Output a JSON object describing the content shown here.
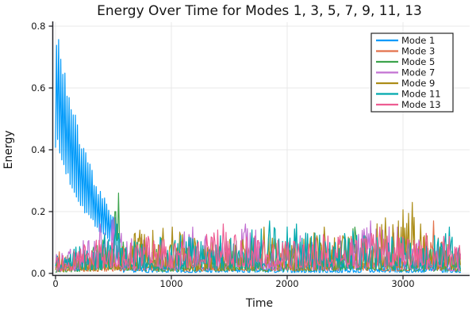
{
  "figure": {
    "background": "#ffffff",
    "text_color": "#151515",
    "grid_color": "#e8e8e8",
    "axis_color": "#24242a"
  },
  "chart_data": {
    "type": "line",
    "title": "Energy Over Time for Modes 1, 3, 5, 7, 9, 11, 13",
    "xlabel": "Time",
    "ylabel": "Energy",
    "xlim": [
      -55,
      3630
    ],
    "ylim": [
      -0.006,
      0.815
    ],
    "xticks": [
      0,
      1000,
      2000,
      3000
    ],
    "xtick_labels": [
      "0",
      "1000",
      "2000",
      "3000"
    ],
    "yticks": [
      0.0,
      0.2,
      0.4,
      0.6,
      0.8
    ],
    "ytick_labels": [
      "0.0",
      "0.2",
      "0.4",
      "0.6",
      "0.8"
    ],
    "grid": true,
    "legend": {
      "position": "top-right",
      "border_color": "#262626",
      "background": "#ffffff"
    },
    "series": [
      {
        "name": "Mode 1",
        "color": "#009AFA",
        "model": "decaying_oscillation",
        "params": {
          "initial_peak": 0.78,
          "amplitude": 0.8,
          "tau": 341,
          "period": 18,
          "trough_ratio": 0.54,
          "decay_end": 540,
          "residual_env": 0.035,
          "residual_floor": 0.1,
          "residual_power": 3
        },
        "seed": 7,
        "notable_peaks": []
      },
      {
        "name": "Mode 3",
        "color": "#E3724B",
        "model": "noise",
        "seed": 11,
        "floor": 0.1,
        "power": 2.4,
        "envelope": [
          [
            0,
            0.09
          ],
          [
            200,
            0.06
          ],
          [
            500,
            0.07
          ],
          [
            800,
            0.1
          ],
          [
            1100,
            0.07
          ],
          [
            1400,
            0.08
          ],
          [
            1700,
            0.09
          ],
          [
            2000,
            0.08
          ],
          [
            2300,
            0.09
          ],
          [
            2550,
            0.12
          ],
          [
            2600,
            0.1
          ],
          [
            2900,
            0.08
          ],
          [
            3100,
            0.09
          ],
          [
            3265,
            0.17
          ],
          [
            3400,
            0.1
          ],
          [
            3500,
            0.08
          ]
        ],
        "notable_peaks": [
          [
            30,
            0.07
          ],
          [
            2550,
            0.12
          ],
          [
            3265,
            0.17
          ]
        ]
      },
      {
        "name": "Mode 5",
        "color": "#3DA44D",
        "model": "noise",
        "seed": 23,
        "floor": 0.08,
        "power": 2.6,
        "envelope": [
          [
            0,
            0.05
          ],
          [
            300,
            0.08
          ],
          [
            480,
            0.18
          ],
          [
            540,
            0.26
          ],
          [
            600,
            0.12
          ],
          [
            900,
            0.08
          ],
          [
            1200,
            0.09
          ],
          [
            1500,
            0.1
          ],
          [
            1800,
            0.08
          ],
          [
            2100,
            0.09
          ],
          [
            2400,
            0.1
          ],
          [
            2580,
            0.15
          ],
          [
            2800,
            0.1
          ],
          [
            3100,
            0.08
          ],
          [
            3300,
            0.09
          ],
          [
            3500,
            0.07
          ]
        ],
        "notable_peaks": [
          [
            510,
            0.2
          ],
          [
            540,
            0.26
          ],
          [
            2580,
            0.15
          ]
        ]
      },
      {
        "name": "Mode 7",
        "color": "#C271D2",
        "model": "noise",
        "seed": 37,
        "floor": 0.09,
        "power": 2.4,
        "envelope": [
          [
            0,
            0.06
          ],
          [
            200,
            0.1
          ],
          [
            380,
            0.16
          ],
          [
            500,
            0.18
          ],
          [
            700,
            0.12
          ],
          [
            900,
            0.13
          ],
          [
            1180,
            0.15
          ],
          [
            1400,
            0.1
          ],
          [
            1640,
            0.16
          ],
          [
            1900,
            0.11
          ],
          [
            2100,
            0.14
          ],
          [
            2400,
            0.1
          ],
          [
            2720,
            0.17
          ],
          [
            2950,
            0.15
          ],
          [
            3100,
            0.12
          ],
          [
            3300,
            0.1
          ],
          [
            3500,
            0.09
          ]
        ],
        "notable_peaks": [
          [
            380,
            0.16
          ],
          [
            500,
            0.18
          ],
          [
            1180,
            0.15
          ],
          [
            1640,
            0.16
          ],
          [
            2720,
            0.17
          ],
          [
            2950,
            0.15
          ]
        ]
      },
      {
        "name": "Mode 9",
        "color": "#AC8D18",
        "model": "noise",
        "seed": 49,
        "floor": 0.09,
        "power": 2.4,
        "envelope": [
          [
            0,
            0.06
          ],
          [
            300,
            0.08
          ],
          [
            600,
            0.12
          ],
          [
            730,
            0.14
          ],
          [
            1000,
            0.15
          ],
          [
            1300,
            0.1
          ],
          [
            1550,
            0.12
          ],
          [
            1800,
            0.15
          ],
          [
            2050,
            0.1
          ],
          [
            2320,
            0.15
          ],
          [
            2600,
            0.12
          ],
          [
            2850,
            0.18
          ],
          [
            3080,
            0.23
          ],
          [
            3160,
            0.16
          ],
          [
            3350,
            0.1
          ],
          [
            3500,
            0.08
          ]
        ],
        "notable_peaks": [
          [
            730,
            0.14
          ],
          [
            1010,
            0.15
          ],
          [
            1800,
            0.15
          ],
          [
            2320,
            0.15
          ],
          [
            2850,
            0.18
          ],
          [
            3080,
            0.23
          ],
          [
            3150,
            0.16
          ]
        ]
      },
      {
        "name": "Mode 11",
        "color": "#00A9AD",
        "model": "noise",
        "seed": 61,
        "floor": 0.1,
        "power": 2.2,
        "envelope": [
          [
            0,
            0.07
          ],
          [
            250,
            0.1
          ],
          [
            500,
            0.14
          ],
          [
            750,
            0.13
          ],
          [
            1000,
            0.12
          ],
          [
            1250,
            0.13
          ],
          [
            1500,
            0.12
          ],
          [
            1850,
            0.17
          ],
          [
            2080,
            0.16
          ],
          [
            2350,
            0.13
          ],
          [
            2600,
            0.14
          ],
          [
            2900,
            0.13
          ],
          [
            3150,
            0.12
          ],
          [
            3400,
            0.15
          ],
          [
            3500,
            0.12
          ]
        ],
        "notable_peaks": [
          [
            520,
            0.14
          ],
          [
            1850,
            0.17
          ],
          [
            2080,
            0.16
          ],
          [
            3400,
            0.15
          ]
        ]
      },
      {
        "name": "Mode 13",
        "color": "#ED5D92",
        "model": "noise",
        "seed": 73,
        "floor": 0.15,
        "power": 1.9,
        "envelope": [
          [
            0,
            0.05
          ],
          [
            200,
            0.09
          ],
          [
            400,
            0.12
          ],
          [
            600,
            0.11
          ],
          [
            800,
            0.12
          ],
          [
            1000,
            0.11
          ],
          [
            1200,
            0.12
          ],
          [
            1450,
            0.16
          ],
          [
            1700,
            0.13
          ],
          [
            1900,
            0.12
          ],
          [
            2100,
            0.11
          ],
          [
            2350,
            0.13
          ],
          [
            2600,
            0.12
          ],
          [
            2800,
            0.15
          ],
          [
            3000,
            0.12
          ],
          [
            3200,
            0.13
          ],
          [
            3400,
            0.12
          ],
          [
            3500,
            0.1
          ]
        ],
        "notable_peaks": [
          [
            800,
            0.12
          ],
          [
            1450,
            0.16
          ],
          [
            2800,
            0.15
          ],
          [
            3200,
            0.13
          ]
        ]
      }
    ]
  }
}
